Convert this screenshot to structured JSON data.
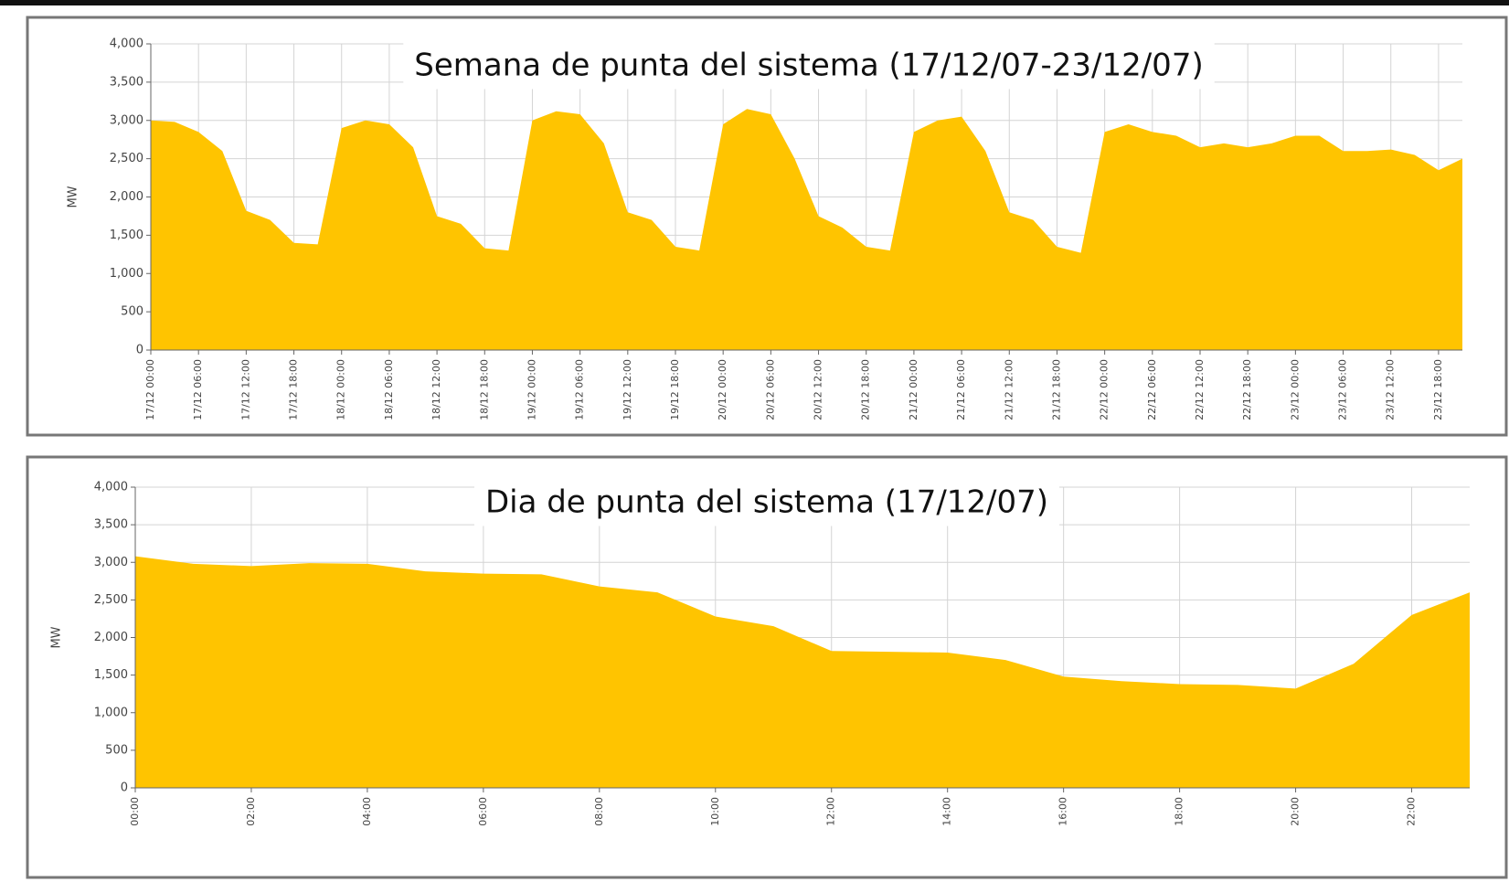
{
  "chart_data": [
    {
      "type": "area",
      "title": "Semana de punta del sistema (17/12/07-23/12/07)",
      "y_label": "MW",
      "color": "#ffc400",
      "grid": true,
      "x": [
        0,
        3,
        6,
        9,
        12,
        15,
        18,
        21,
        24,
        27,
        30,
        33,
        36,
        39,
        42,
        45,
        48,
        51,
        54,
        57,
        60,
        63,
        66,
        69,
        72,
        75,
        78,
        81,
        84,
        87,
        90,
        93,
        96,
        99,
        102,
        105,
        108,
        111,
        114,
        117,
        120,
        123,
        126,
        129,
        132,
        135,
        138,
        141,
        144,
        147,
        150,
        153,
        156,
        159,
        162,
        165
      ],
      "values": [
        3000,
        2980,
        2850,
        2600,
        1820,
        1700,
        1400,
        1380,
        2900,
        3000,
        2950,
        2650,
        1750,
        1650,
        1330,
        1300,
        3000,
        3120,
        3080,
        2700,
        1800,
        1700,
        1350,
        1300,
        2950,
        3150,
        3080,
        2500,
        1750,
        1600,
        1350,
        1300,
        2850,
        3000,
        3050,
        2600,
        1800,
        1700,
        1350,
        1270,
        2850,
        2950,
        2850,
        2800,
        2650,
        2700,
        2650,
        2700,
        2800,
        2800,
        2600,
        2600,
        2620,
        2550,
        2350,
        2500
      ],
      "xlim": [
        0,
        165
      ],
      "xticks": [
        {
          "value": 0,
          "label": "17/12 00:00"
        },
        {
          "value": 6,
          "label": "17/12 06:00"
        },
        {
          "value": 12,
          "label": "17/12 12:00"
        },
        {
          "value": 18,
          "label": "17/12 18:00"
        },
        {
          "value": 24,
          "label": "18/12 00:00"
        },
        {
          "value": 30,
          "label": "18/12 06:00"
        },
        {
          "value": 36,
          "label": "18/12 12:00"
        },
        {
          "value": 42,
          "label": "18/12 18:00"
        },
        {
          "value": 48,
          "label": "19/12 00:00"
        },
        {
          "value": 54,
          "label": "19/12 06:00"
        },
        {
          "value": 60,
          "label": "19/12 12:00"
        },
        {
          "value": 66,
          "label": "19/12 18:00"
        },
        {
          "value": 72,
          "label": "20/12 00:00"
        },
        {
          "value": 78,
          "label": "20/12 06:00"
        },
        {
          "value": 84,
          "label": "20/12 12:00"
        },
        {
          "value": 90,
          "label": "20/12 18:00"
        },
        {
          "value": 96,
          "label": "21/12 00:00"
        },
        {
          "value": 102,
          "label": "21/12 06:00"
        },
        {
          "value": 108,
          "label": "21/12 12:00"
        },
        {
          "value": 114,
          "label": "21/12 18:00"
        },
        {
          "value": 120,
          "label": "22/12 00:00"
        },
        {
          "value": 126,
          "label": "22/12 06:00"
        },
        {
          "value": 132,
          "label": "22/12 12:00"
        },
        {
          "value": 138,
          "label": "22/12 18:00"
        },
        {
          "value": 144,
          "label": "23/12 00:00"
        },
        {
          "value": 150,
          "label": "23/12 06:00"
        },
        {
          "value": 156,
          "label": "23/12 12:00"
        },
        {
          "value": 162,
          "label": "23/12 18:00"
        }
      ],
      "ylim": [
        0,
        4000
      ],
      "yticks": [
        0,
        500,
        {
          "value": 1000,
          "label": "1,000"
        },
        {
          "value": 1500,
          "label": "1,500"
        },
        {
          "value": 2000,
          "label": "2,000"
        },
        {
          "value": 2500,
          "label": "2,500"
        },
        {
          "value": 3000,
          "label": "3,000"
        },
        {
          "value": 3500,
          "label": "3,500"
        },
        {
          "value": 4000,
          "label": "4,000"
        }
      ]
    },
    {
      "type": "area",
      "title": "Dia de punta del sistema (17/12/07)",
      "y_label": "MW",
      "color": "#ffc400",
      "grid": true,
      "x": [
        0,
        1,
        2,
        3,
        4,
        5,
        6,
        7,
        8,
        9,
        10,
        11,
        12,
        13,
        14,
        15,
        16,
        17,
        18,
        19,
        20,
        21,
        22,
        23
      ],
      "values": [
        3080,
        2980,
        2950,
        2990,
        2980,
        2880,
        2850,
        2840,
        2680,
        2600,
        2280,
        2150,
        1820,
        1810,
        1800,
        1700,
        1480,
        1420,
        1380,
        1370,
        1320,
        1650,
        2300,
        2600
      ],
      "xlim": [
        0,
        23
      ],
      "xticks": [
        {
          "value": 0,
          "label": "00:00"
        },
        {
          "value": 2,
          "label": "02:00"
        },
        {
          "value": 4,
          "label": "04:00"
        },
        {
          "value": 6,
          "label": "06:00"
        },
        {
          "value": 8,
          "label": "08:00"
        },
        {
          "value": 10,
          "label": "10:00"
        },
        {
          "value": 12,
          "label": "12:00"
        },
        {
          "value": 14,
          "label": "14:00"
        },
        {
          "value": 16,
          "label": "16:00"
        },
        {
          "value": 18,
          "label": "18:00"
        },
        {
          "value": 20,
          "label": "20:00"
        },
        {
          "value": 22,
          "label": "22:00"
        }
      ],
      "ylim": [
        0,
        4000
      ],
      "yticks": [
        0,
        500,
        {
          "value": 1000,
          "label": "1,000"
        },
        {
          "value": 1500,
          "label": "1,500"
        },
        {
          "value": 2000,
          "label": "2,000"
        },
        {
          "value": 2500,
          "label": "2,500"
        },
        {
          "value": 3000,
          "label": "3,000"
        },
        {
          "value": 3500,
          "label": "3,500"
        },
        {
          "value": 4000,
          "label": "4,000"
        }
      ]
    }
  ]
}
